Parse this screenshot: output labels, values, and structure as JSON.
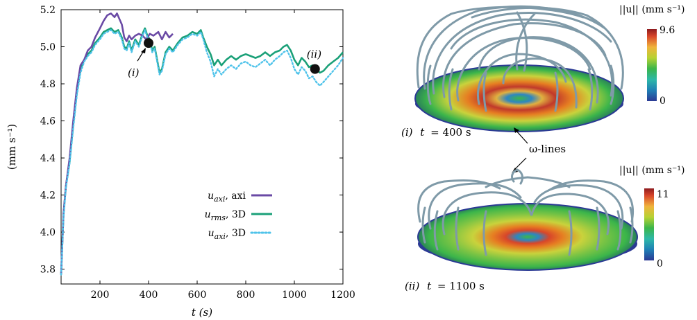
{
  "chart_data": [
    {
      "type": "line",
      "xlabel": "t (s)",
      "ylabel": "(mm s⁻¹)",
      "xlim": [
        40,
        1200
      ],
      "ylim": [
        3.72,
        5.2
      ],
      "x_ticks": [
        "200",
        "400",
        "600",
        "800",
        "1000",
        "1200"
      ],
      "y_ticks": [
        "3.8",
        "4.0",
        "4.2",
        "4.4",
        "4.6",
        "4.8",
        "5.0",
        "5.2"
      ],
      "grid": false,
      "legend_position": "bottom-right",
      "series": [
        {
          "name": "u_axi, axi",
          "color": "#6a4aa5",
          "style": "solid",
          "points": [
            [
              40,
              3.77
            ],
            [
              50,
              4.1
            ],
            [
              60,
              4.25
            ],
            [
              75,
              4.4
            ],
            [
              90,
              4.6
            ],
            [
              105,
              4.78
            ],
            [
              120,
              4.9
            ],
            [
              135,
              4.93
            ],
            [
              150,
              4.98
            ],
            [
              165,
              5.0
            ],
            [
              180,
              5.05
            ],
            [
              200,
              5.1
            ],
            [
              215,
              5.14
            ],
            [
              230,
              5.17
            ],
            [
              245,
              5.18
            ],
            [
              260,
              5.16
            ],
            [
              270,
              5.18
            ],
            [
              280,
              5.15
            ],
            [
              290,
              5.12
            ],
            [
              300,
              5.05
            ],
            [
              310,
              5.03
            ],
            [
              320,
              5.06
            ],
            [
              330,
              5.04
            ],
            [
              345,
              5.06
            ],
            [
              360,
              5.07
            ],
            [
              375,
              5.06
            ],
            [
              390,
              5.04
            ],
            [
              405,
              5.07
            ],
            [
              420,
              5.06
            ],
            [
              440,
              5.08
            ],
            [
              455,
              5.04
            ],
            [
              470,
              5.08
            ],
            [
              485,
              5.05
            ],
            [
              500,
              5.07
            ]
          ]
        },
        {
          "name": "u_rms, 3D",
          "color": "#1aa078",
          "style": "solid",
          "points": [
            [
              40,
              3.77
            ],
            [
              50,
              4.1
            ],
            [
              60,
              4.25
            ],
            [
              75,
              4.38
            ],
            [
              90,
              4.58
            ],
            [
              105,
              4.76
            ],
            [
              120,
              4.88
            ],
            [
              135,
              4.93
            ],
            [
              150,
              4.96
            ],
            [
              165,
              4.98
            ],
            [
              180,
              5.02
            ],
            [
              200,
              5.05
            ],
            [
              215,
              5.08
            ],
            [
              230,
              5.09
            ],
            [
              245,
              5.1
            ],
            [
              260,
              5.08
            ],
            [
              275,
              5.09
            ],
            [
              290,
              5.05
            ],
            [
              300,
              5.0
            ],
            [
              310,
              4.99
            ],
            [
              320,
              5.03
            ],
            [
              330,
              4.98
            ],
            [
              345,
              5.04
            ],
            [
              360,
              5.01
            ],
            [
              375,
              5.07
            ],
            [
              385,
              5.1
            ],
            [
              395,
              5.06
            ],
            [
              405,
              5.04
            ],
            [
              415,
              4.98
            ],
            [
              425,
              5.0
            ],
            [
              435,
              4.93
            ],
            [
              445,
              4.86
            ],
            [
              455,
              4.88
            ],
            [
              470,
              4.97
            ],
            [
              485,
              5.0
            ],
            [
              500,
              4.98
            ],
            [
              520,
              5.02
            ],
            [
              540,
              5.05
            ],
            [
              560,
              5.06
            ],
            [
              580,
              5.08
            ],
            [
              600,
              5.07
            ],
            [
              615,
              5.09
            ],
            [
              625,
              5.05
            ],
            [
              640,
              5.0
            ],
            [
              655,
              4.96
            ],
            [
              670,
              4.9
            ],
            [
              685,
              4.93
            ],
            [
              700,
              4.9
            ],
            [
              720,
              4.93
            ],
            [
              740,
              4.95
            ],
            [
              760,
              4.93
            ],
            [
              780,
              4.95
            ],
            [
              800,
              4.96
            ],
            [
              820,
              4.95
            ],
            [
              840,
              4.94
            ],
            [
              860,
              4.95
            ],
            [
              880,
              4.97
            ],
            [
              900,
              4.95
            ],
            [
              920,
              4.97
            ],
            [
              940,
              4.98
            ],
            [
              955,
              5.0
            ],
            [
              970,
              5.01
            ],
            [
              985,
              4.98
            ],
            [
              1000,
              4.93
            ],
            [
              1015,
              4.9
            ],
            [
              1030,
              4.94
            ],
            [
              1045,
              4.92
            ],
            [
              1060,
              4.89
            ],
            [
              1075,
              4.9
            ],
            [
              1090,
              4.88
            ],
            [
              1105,
              4.86
            ],
            [
              1120,
              4.87
            ],
            [
              1140,
              4.9
            ],
            [
              1160,
              4.92
            ],
            [
              1180,
              4.94
            ],
            [
              1200,
              4.97
            ]
          ]
        },
        {
          "name": "u_axi, 3D",
          "color": "#4fc3ea",
          "style": "dotted",
          "points": [
            [
              40,
              3.77
            ],
            [
              50,
              4.08
            ],
            [
              60,
              4.24
            ],
            [
              75,
              4.37
            ],
            [
              90,
              4.56
            ],
            [
              105,
              4.74
            ],
            [
              120,
              4.86
            ],
            [
              135,
              4.92
            ],
            [
              150,
              4.95
            ],
            [
              165,
              4.97
            ],
            [
              180,
              5.01
            ],
            [
              200,
              5.04
            ],
            [
              215,
              5.07
            ],
            [
              230,
              5.08
            ],
            [
              245,
              5.09
            ],
            [
              260,
              5.07
            ],
            [
              275,
              5.08
            ],
            [
              290,
              5.04
            ],
            [
              300,
              4.99
            ],
            [
              310,
              4.98
            ],
            [
              320,
              5.02
            ],
            [
              330,
              4.97
            ],
            [
              345,
              5.03
            ],
            [
              360,
              5.0
            ],
            [
              375,
              5.06
            ],
            [
              385,
              5.09
            ],
            [
              395,
              5.05
            ],
            [
              405,
              5.03
            ],
            [
              415,
              4.97
            ],
            [
              425,
              4.99
            ],
            [
              435,
              4.92
            ],
            [
              445,
              4.85
            ],
            [
              455,
              4.87
            ],
            [
              470,
              4.96
            ],
            [
              485,
              4.99
            ],
            [
              500,
              4.97
            ],
            [
              520,
              5.01
            ],
            [
              540,
              5.04
            ],
            [
              560,
              5.05
            ],
            [
              580,
              5.07
            ],
            [
              600,
              5.06
            ],
            [
              615,
              5.08
            ],
            [
              625,
              5.04
            ],
            [
              640,
              4.97
            ],
            [
              655,
              4.92
            ],
            [
              670,
              4.84
            ],
            [
              685,
              4.88
            ],
            [
              700,
              4.85
            ],
            [
              720,
              4.88
            ],
            [
              740,
              4.9
            ],
            [
              760,
              4.88
            ],
            [
              780,
              4.91
            ],
            [
              800,
              4.92
            ],
            [
              820,
              4.9
            ],
            [
              840,
              4.89
            ],
            [
              860,
              4.91
            ],
            [
              880,
              4.93
            ],
            [
              900,
              4.9
            ],
            [
              920,
              4.93
            ],
            [
              940,
              4.95
            ],
            [
              955,
              4.97
            ],
            [
              970,
              4.98
            ],
            [
              985,
              4.94
            ],
            [
              1000,
              4.88
            ],
            [
              1015,
              4.85
            ],
            [
              1030,
              4.89
            ],
            [
              1045,
              4.87
            ],
            [
              1060,
              4.83
            ],
            [
              1075,
              4.84
            ],
            [
              1090,
              4.81
            ],
            [
              1105,
              4.79
            ],
            [
              1120,
              4.81
            ],
            [
              1140,
              4.84
            ],
            [
              1160,
              4.87
            ],
            [
              1180,
              4.9
            ],
            [
              1200,
              4.94
            ]
          ]
        }
      ],
      "annotations": [
        {
          "label": "(i)",
          "x": 400,
          "y": 5.02
        },
        {
          "label": "(ii)",
          "x": 1085,
          "y": 4.88
        }
      ],
      "legend_labels": [
        {
          "sym": "u",
          "sub": "axi",
          "text": ", axi"
        },
        {
          "sym": "u",
          "sub": "rms",
          "text": ", 3D"
        },
        {
          "sym": "u",
          "sub": "axi",
          "text": ", 3D"
        }
      ]
    }
  ],
  "panels": {
    "top": {
      "caption_prefix": "(i)",
      "caption_var": "t",
      "caption_value": "= 400 s",
      "colorbar_title": "||u|| (mm s⁻¹)",
      "colorbar_max": "9.6",
      "colorbar_min": "0"
    },
    "bottom": {
      "caption_prefix": "(ii)",
      "caption_var": "t",
      "caption_value": "= 1100 s",
      "colorbar_title": "||u|| (mm s⁻¹)",
      "colorbar_max": "11",
      "colorbar_min": "0"
    },
    "omega_label": "ω-lines"
  },
  "colors": {
    "disk_outer": "#3a55b0",
    "disk_green": "#3bb54a",
    "disk_yellow": "#c9d23c",
    "disk_orange": "#e67e22",
    "disk_red": "#c0392b",
    "stream": "#7f9aa8"
  }
}
